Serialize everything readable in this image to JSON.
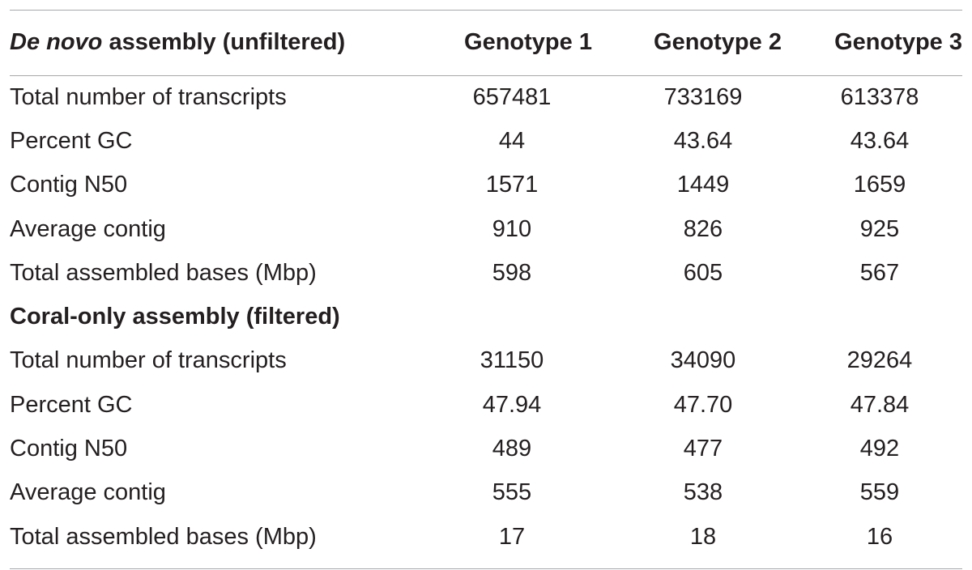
{
  "header": {
    "label_italic": "De novo",
    "label_rest": " assembly (unfiltered)",
    "genotype_1": "Genotype 1",
    "genotype_2": "Genotype 2",
    "genotype_3": "Genotype 3"
  },
  "unfiltered": {
    "rows": [
      {
        "label": "Total number of transcripts",
        "g1": "657481",
        "g2": "733169",
        "g3": "613378"
      },
      {
        "label": "Percent GC",
        "g1": "44",
        "g2": "43.64",
        "g3": "43.64"
      },
      {
        "label": "Contig N50",
        "g1": "1571",
        "g2": "1449",
        "g3": "1659"
      },
      {
        "label": "Average contig",
        "g1": "910",
        "g2": "826",
        "g3": "925"
      },
      {
        "label": "Total assembled bases (Mbp)",
        "g1": "598",
        "g2": "605",
        "g3": "567"
      }
    ]
  },
  "filtered": {
    "section_label": "Coral-only assembly (filtered)",
    "rows": [
      {
        "label": "Total number of transcripts",
        "g1": "31150",
        "g2": "34090",
        "g3": "29264"
      },
      {
        "label": "Percent GC",
        "g1": "47.94",
        "g2": "47.70",
        "g3": "47.84"
      },
      {
        "label": "Contig N50",
        "g1": "489",
        "g2": "477",
        "g3": "492"
      },
      {
        "label": "Average contig",
        "g1": "555",
        "g2": "538",
        "g3": "559"
      },
      {
        "label": "Total assembled bases (Mbp)",
        "g1": "17",
        "g2": "18",
        "g3": "16"
      }
    ]
  },
  "chart_data": {
    "type": "table",
    "columns": [
      "De novo assembly (unfiltered)",
      "Genotype 1",
      "Genotype 2",
      "Genotype 3"
    ],
    "sections": [
      {
        "name": "De novo assembly (unfiltered)",
        "rows": [
          [
            "Total number of transcripts",
            657481,
            733169,
            613378
          ],
          [
            "Percent GC",
            44,
            43.64,
            43.64
          ],
          [
            "Contig N50",
            1571,
            1449,
            1659
          ],
          [
            "Average contig",
            910,
            826,
            925
          ],
          [
            "Total assembled bases (Mbp)",
            598,
            605,
            567
          ]
        ]
      },
      {
        "name": "Coral-only assembly (filtered)",
        "rows": [
          [
            "Total number of transcripts",
            31150,
            34090,
            29264
          ],
          [
            "Percent GC",
            47.94,
            47.7,
            47.84
          ],
          [
            "Contig N50",
            489,
            477,
            492
          ],
          [
            "Average contig",
            555,
            538,
            559
          ],
          [
            "Total assembled bases (Mbp)",
            17,
            18,
            16
          ]
        ]
      }
    ]
  }
}
